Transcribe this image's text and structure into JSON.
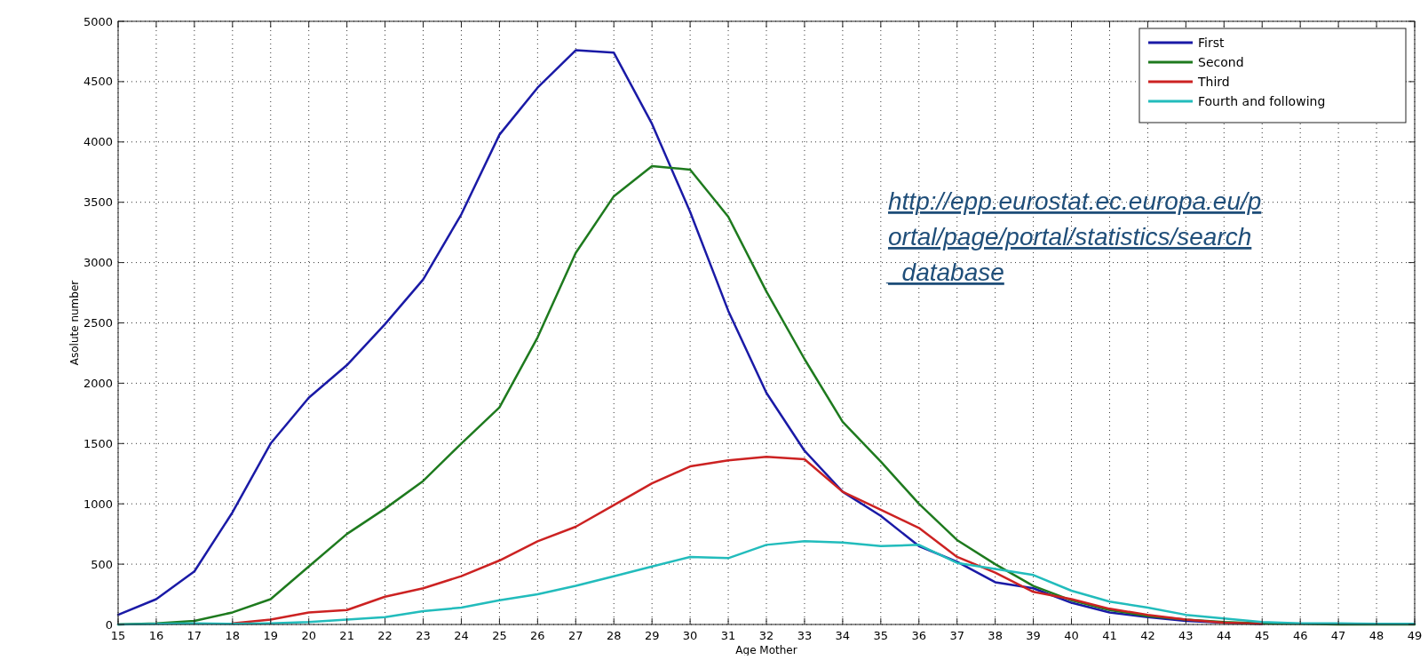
{
  "chart_data": {
    "type": "line",
    "xlabel": "Age Mother",
    "ylabel": "Asolute number",
    "x": [
      15,
      16,
      17,
      18,
      19,
      20,
      21,
      22,
      23,
      24,
      25,
      26,
      27,
      28,
      29,
      30,
      31,
      32,
      33,
      34,
      35,
      36,
      37,
      38,
      39,
      40,
      41,
      42,
      43,
      44,
      45,
      46,
      47,
      48,
      49
    ],
    "xlim": [
      15,
      49
    ],
    "xticks": [
      15,
      16,
      17,
      18,
      19,
      20,
      21,
      22,
      23,
      24,
      25,
      26,
      27,
      28,
      29,
      30,
      31,
      32,
      33,
      34,
      35,
      36,
      37,
      38,
      39,
      40,
      41,
      42,
      43,
      44,
      45,
      46,
      47,
      48,
      49
    ],
    "ylim": [
      0,
      5000
    ],
    "yticks": [
      0,
      500,
      1000,
      1500,
      2000,
      2500,
      3000,
      3500,
      4000,
      4500,
      5000
    ],
    "grid": true,
    "legend": "top right",
    "line_style": "solid",
    "marker": "none",
    "series": [
      {
        "name": "First",
        "color": "#1a1aa6",
        "values": [
          80,
          210,
          440,
          930,
          1500,
          1880,
          2150,
          2490,
          2860,
          3400,
          4060,
          4450,
          4760,
          4740,
          4150,
          3420,
          2600,
          1920,
          1440,
          1100,
          900,
          650,
          520,
          350,
          300,
          180,
          100,
          60,
          30,
          15,
          5,
          null,
          null,
          null,
          null
        ]
      },
      {
        "name": "Second",
        "color": "#1e7a1e",
        "values": [
          0,
          10,
          30,
          100,
          210,
          480,
          750,
          960,
          1190,
          1500,
          1800,
          2380,
          3080,
          3550,
          3800,
          3770,
          3380,
          2760,
          2200,
          1680,
          1350,
          1000,
          700,
          500,
          320,
          200,
          120,
          70,
          40,
          20,
          10,
          5,
          0,
          0,
          0
        ]
      },
      {
        "name": "Third",
        "color": "#cc2222",
        "values": [
          null,
          null,
          null,
          10,
          40,
          100,
          120,
          230,
          300,
          400,
          530,
          690,
          810,
          990,
          1170,
          1310,
          1360,
          1390,
          1370,
          1100,
          950,
          800,
          560,
          430,
          270,
          210,
          130,
          80,
          40,
          15,
          5,
          null,
          null,
          null,
          null
        ]
      },
      {
        "name": "Fourth and following",
        "color": "#22bcbc",
        "values": [
          0,
          5,
          10,
          5,
          10,
          20,
          40,
          60,
          110,
          140,
          200,
          250,
          320,
          400,
          480,
          560,
          550,
          660,
          690,
          680,
          650,
          660,
          510,
          460,
          410,
          280,
          190,
          140,
          80,
          50,
          20,
          10,
          10,
          5,
          5
        ]
      }
    ],
    "annotations": [
      "http://epp.eurostat.ec.europa.eu/portal/page/portal/statistics/search_database"
    ]
  }
}
